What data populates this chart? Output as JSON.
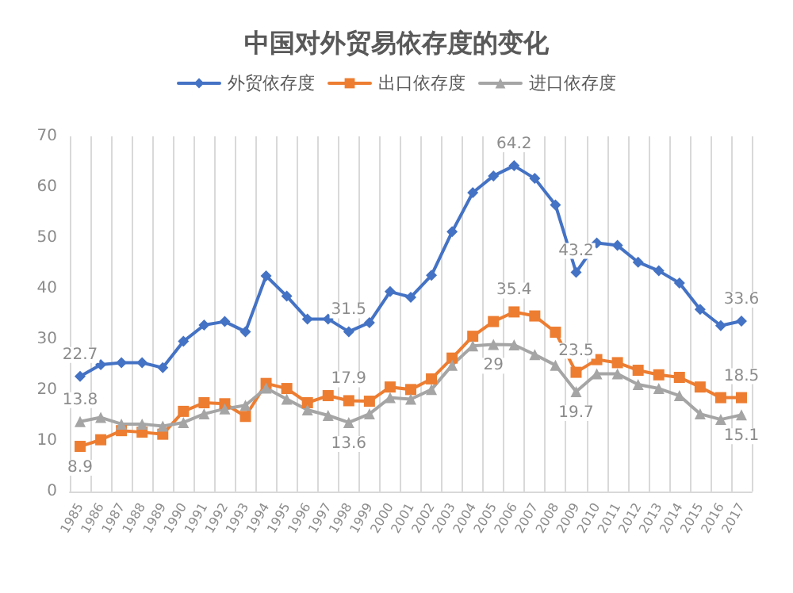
{
  "chart_data": {
    "type": "line",
    "title": "中国对外贸易依存度的变化",
    "categories": [
      "1985",
      "1986",
      "1987",
      "1988",
      "1989",
      "1990",
      "1991",
      "1992",
      "1993",
      "1994",
      "1995",
      "1996",
      "1997",
      "1998",
      "1999",
      "2000",
      "2001",
      "2002",
      "2003",
      "2004",
      "2005",
      "2006",
      "2007",
      "2008",
      "2009",
      "2010",
      "2011",
      "2012",
      "2013",
      "2014",
      "2015",
      "2016",
      "2017"
    ],
    "series": [
      {
        "name": "外贸依存度",
        "color": "#4472c4",
        "marker": "diamond",
        "values": [
          22.7,
          25,
          25.4,
          25.4,
          24.4,
          29.6,
          32.8,
          33.5,
          31.5,
          42.5,
          38.5,
          34,
          34,
          31.5,
          33.3,
          39.4,
          38.3,
          42.6,
          51.2,
          58.9,
          62.2,
          64.2,
          61.7,
          56.5,
          43.2,
          49,
          48.5,
          45.2,
          43.5,
          41.1,
          35.9,
          32.7,
          33.6
        ],
        "value_labels": [
          "22.7",
          null,
          null,
          null,
          null,
          null,
          null,
          null,
          null,
          null,
          null,
          null,
          null,
          "31.5",
          null,
          null,
          null,
          null,
          null,
          null,
          null,
          "64.2",
          null,
          null,
          "43.2",
          null,
          null,
          null,
          null,
          null,
          null,
          null,
          "33.6"
        ]
      },
      {
        "name": "出口依存度",
        "color": "#ed7d31",
        "marker": "square",
        "values": [
          8.9,
          10.2,
          12,
          11.7,
          11.3,
          15.8,
          17.5,
          17.3,
          14.8,
          21.3,
          20.3,
          17.5,
          18.9,
          17.9,
          17.8,
          20.6,
          20.1,
          22.2,
          26.3,
          30.6,
          33.5,
          35.4,
          34.6,
          31.4,
          23.5,
          26,
          25.4,
          23.9,
          23,
          22.5,
          20.6,
          18.5,
          18.5
        ],
        "value_labels": [
          "8.9",
          null,
          null,
          null,
          null,
          null,
          null,
          null,
          null,
          null,
          null,
          null,
          null,
          "17.9",
          null,
          null,
          null,
          null,
          null,
          null,
          null,
          "35.4",
          null,
          null,
          "23.5",
          null,
          null,
          null,
          null,
          null,
          null,
          null,
          "18.5"
        ]
      },
      {
        "name": "进口依存度",
        "color": "#a5a5a5",
        "marker": "triangle",
        "values": [
          13.8,
          14.6,
          13.3,
          13.3,
          12.9,
          13.6,
          15.3,
          16.3,
          17,
          20.4,
          18.2,
          16.1,
          15,
          13.6,
          15.3,
          18.5,
          18.2,
          20.1,
          24.9,
          28.7,
          29,
          28.9,
          27,
          24.9,
          19.7,
          23.2,
          23.2,
          21.1,
          20.3,
          18.9,
          15.3,
          14.2,
          15.1
        ],
        "value_labels": [
          "13.8",
          null,
          null,
          null,
          null,
          null,
          null,
          null,
          null,
          null,
          null,
          null,
          null,
          "13.6",
          null,
          null,
          null,
          null,
          null,
          null,
          "29",
          null,
          null,
          null,
          "19.7",
          null,
          null,
          null,
          null,
          null,
          null,
          null,
          "15.1"
        ]
      }
    ],
    "ylim": [
      0,
      70
    ],
    "yticks": [
      0,
      10,
      20,
      30,
      40,
      50,
      60,
      70
    ],
    "grid": "x",
    "legend": "top",
    "line_style": "solid"
  }
}
